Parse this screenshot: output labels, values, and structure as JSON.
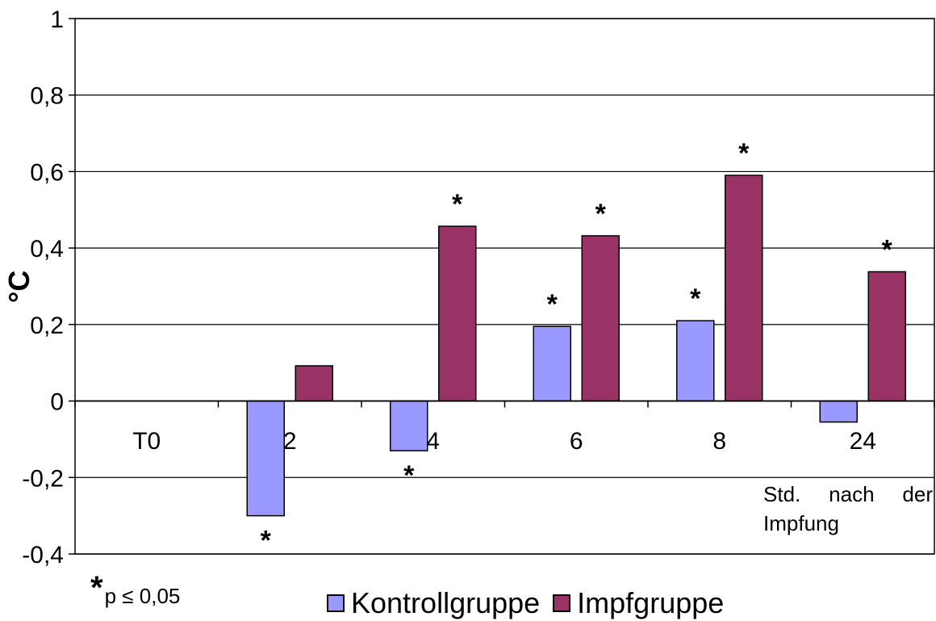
{
  "chart_data": {
    "type": "bar",
    "categories": [
      "T0",
      "2",
      "4",
      "6",
      "8",
      "24"
    ],
    "series": [
      {
        "name": "Kontrollgruppe",
        "color": "#9999ff",
        "values": [
          0,
          -0.3,
          -0.13,
          0.195,
          0.21,
          -0.055
        ],
        "significant": [
          false,
          true,
          true,
          true,
          true,
          false
        ]
      },
      {
        "name": "Impfgruppe",
        "color": "#993366",
        "values": [
          0,
          0.092,
          0.457,
          0.432,
          0.59,
          0.338
        ],
        "significant": [
          false,
          false,
          true,
          true,
          true,
          true
        ]
      }
    ],
    "ylabel": "°C",
    "xlabel": "Std. nach der Impfung",
    "ylim": [
      -0.4,
      1
    ],
    "yticks": [
      "1",
      "0,8",
      "0,6",
      "0,4",
      "0,2",
      "0",
      "-0,2",
      "-0,4"
    ],
    "ytick_values": [
      1,
      0.8,
      0.6,
      0.4,
      0.2,
      0,
      -0.2,
      -0.4
    ],
    "grid": true,
    "legend_position": "bottom",
    "significance_marker": "*",
    "significance_note": "p ≤ 0,05"
  }
}
